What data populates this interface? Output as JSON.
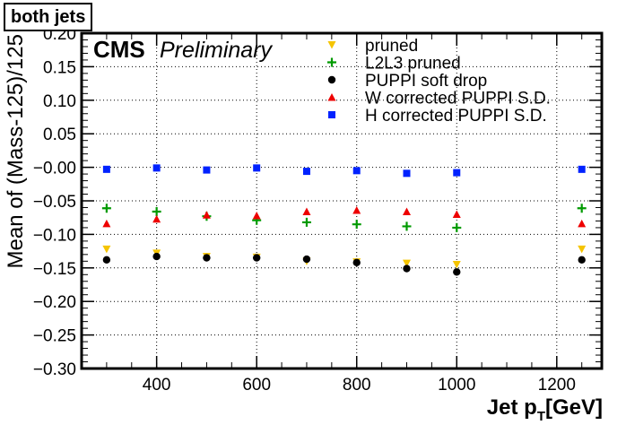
{
  "corner_label": "both jets",
  "experiment_label": "CMS",
  "status_label": "Preliminary",
  "chart_data": {
    "type": "scatter",
    "xlabel": "Jet p",
    "xlabel_sub": "T",
    "xlabel_unit": "[GeV]",
    "ylabel": "Mean of (Mass-125)/125",
    "xlim": [
      250,
      1290
    ],
    "ylim": [
      -0.3,
      0.2
    ],
    "x_ticks": [
      400,
      600,
      800,
      1000,
      1200
    ],
    "y_ticks": [
      -0.3,
      -0.25,
      -0.2,
      -0.15,
      -0.1,
      -0.05,
      0.0,
      0.05,
      0.1,
      0.15,
      0.2
    ],
    "y_tick_labels": [
      "−0.30",
      "−0.25",
      "−0.20",
      "−0.15",
      "−0.10",
      "−0.05",
      "−0.00",
      "0.05",
      "0.10",
      "0.15",
      "0.20"
    ],
    "grid": true,
    "legend_position": "top-right",
    "x": [
      300,
      400,
      500,
      600,
      700,
      800,
      900,
      1000,
      1250
    ],
    "series": [
      {
        "name": "pruned",
        "marker": "triangle-down",
        "color": "#f5c400",
        "values": [
          -0.122,
          -0.128,
          -0.133,
          -0.134,
          -0.14,
          -0.141,
          -0.143,
          -0.145,
          -0.122
        ]
      },
      {
        "name": "L2L3 pruned",
        "marker": "plus",
        "color": "#009a00",
        "values": [
          -0.061,
          -0.066,
          -0.073,
          -0.079,
          -0.082,
          -0.085,
          -0.088,
          -0.09,
          -0.061
        ]
      },
      {
        "name": "PUPPI soft drop",
        "marker": "circle",
        "color": "#000000",
        "values": [
          -0.138,
          -0.133,
          -0.135,
          -0.135,
          -0.137,
          -0.142,
          -0.151,
          -0.156,
          -0.138
        ]
      },
      {
        "name": "W corrected PUPPI S.D.",
        "marker": "triangle-up",
        "color": "#ee0000",
        "values": [
          -0.084,
          -0.077,
          -0.071,
          -0.072,
          -0.066,
          -0.064,
          -0.066,
          -0.07,
          -0.084
        ]
      },
      {
        "name": "H corrected PUPPI S.D.",
        "marker": "square",
        "color": "#0022ff",
        "values": [
          -0.003,
          -0.001,
          -0.004,
          -0.001,
          -0.006,
          -0.005,
          -0.009,
          -0.008,
          -0.003
        ]
      }
    ]
  }
}
